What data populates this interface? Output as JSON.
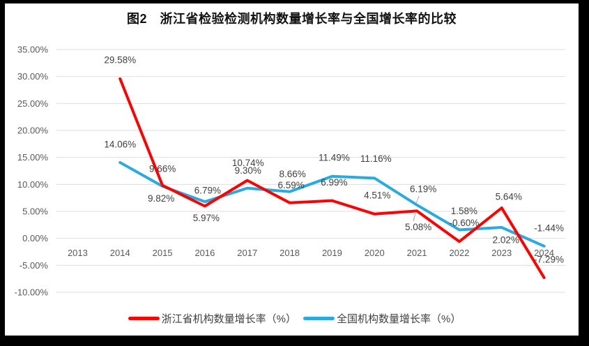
{
  "window": {
    "background": "#000000",
    "panel_background": "#FFFFFF"
  },
  "chart_data": {
    "type": "line",
    "title": "图2　浙江省检验检测机构数量增长率与全国增长率的比较",
    "categories": [
      "2013",
      "2014",
      "2015",
      "2016",
      "2017",
      "2018",
      "2019",
      "2020",
      "2021",
      "2022",
      "2023",
      "2024"
    ],
    "series": [
      {
        "name": "浙江省机构数量增长率（%）",
        "color": "#FE0000",
        "values": [
          null,
          29.58,
          9.82,
          5.97,
          10.74,
          6.59,
          6.99,
          4.51,
          5.08,
          -0.6,
          5.64,
          -7.29
        ],
        "label_offsets": [
          null,
          [
            0,
            -27
          ],
          [
            -2,
            19
          ],
          [
            2,
            17
          ],
          [
            1,
            -25
          ],
          [
            2,
            -25
          ],
          [
            3,
            -26
          ],
          [
            4,
            -27
          ],
          [
            2,
            23
          ],
          [
            7,
            -27
          ],
          [
            10,
            -16
          ],
          [
            7,
            -26
          ]
        ]
      },
      {
        "name": "全国机构数量增长率（%）",
        "color": "#29AAE1",
        "values": [
          null,
          14.06,
          9.66,
          6.79,
          9.3,
          8.66,
          11.49,
          11.16,
          6.19,
          1.58,
          2.02,
          -1.44
        ],
        "label_offsets": [
          null,
          [
            0,
            -26
          ],
          [
            0,
            -25
          ],
          [
            4,
            -16
          ],
          [
            1,
            -25
          ],
          [
            4,
            -25
          ],
          [
            3,
            -27
          ],
          [
            2,
            -28
          ],
          [
            9,
            -23
          ],
          [
            7,
            -27
          ],
          [
            6,
            18
          ],
          [
            7,
            -26
          ]
        ]
      }
    ],
    "y_axis": {
      "min": -10,
      "max": 35,
      "step": 5,
      "unit": "%",
      "tick_labels": [
        "35.00%",
        "30.00%",
        "25.00%",
        "20.00%",
        "15.00%",
        "10.00%",
        "5.00%",
        "0.00%",
        "-5.00%",
        "-10.00%"
      ]
    },
    "grid": true,
    "legend_position": "bottom",
    "data_label_format": "0.00%",
    "leader_lines": [
      [
        601,
        281,
        597,
        292
      ],
      [
        596,
        305,
        593,
        317
      ]
    ],
    "colors": {
      "gridline": "#DEDEDE",
      "axis_text": "#595959",
      "data_label": "#3F3F3F",
      "leader": "#A6A6A6",
      "title_text": "#111111",
      "legend_text": "#404040"
    }
  }
}
